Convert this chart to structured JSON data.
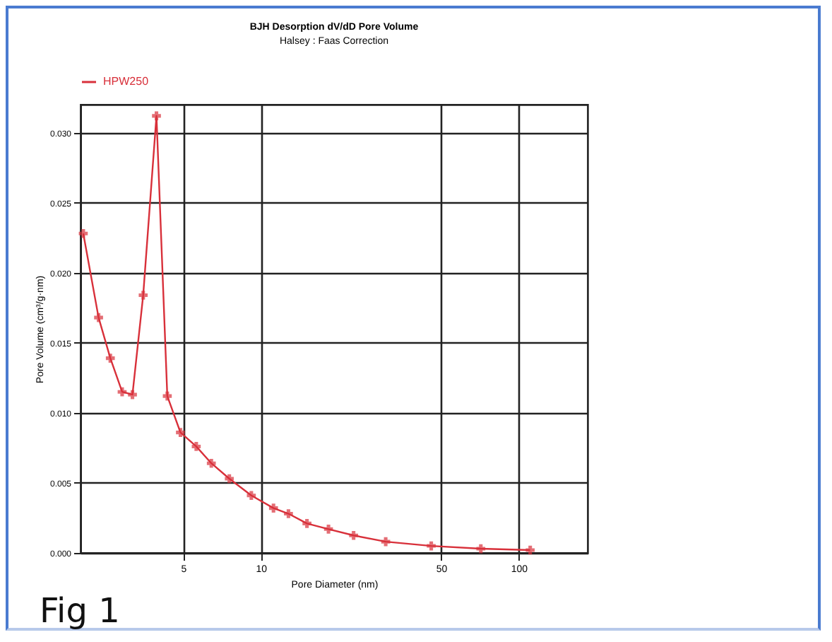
{
  "chart_data": {
    "type": "line",
    "title": "BJH Desorption dV/dD Pore Volume",
    "subtitle": "Halsey : Faas Correction",
    "xlabel": "Pore Diameter (nm)",
    "ylabel": "Pore Volume (cm³/g·nm)",
    "annotations": [
      "Fig 1"
    ],
    "x": [
      2.05,
      2.35,
      2.61,
      2.9,
      3.18,
      3.5,
      3.94,
      4.34,
      4.88,
      5.62,
      6.43,
      7.55,
      9.19,
      11.2,
      12.8,
      15.1,
      18.3,
      22.9,
      30.5,
      45.8,
      71.3,
      110.8
    ],
    "series": [
      {
        "name": "HPW250",
        "color": "#d8303a",
        "values": [
          0.0228,
          0.0168,
          0.0139,
          0.0115,
          0.0113,
          0.0184,
          0.0312,
          0.0112,
          0.0086,
          0.0076,
          0.0064,
          0.0053,
          0.0041,
          0.0032,
          0.0028,
          0.0021,
          0.0017,
          0.00125,
          0.0008,
          0.0005,
          0.0003,
          0.0002
        ]
      }
    ],
    "log": "x",
    "xlim": [
      2,
      185
    ],
    "xticks": [
      5,
      10,
      50,
      100
    ],
    "ylim": [
      0,
      0.032
    ],
    "yticks": [
      {
        "value": 0,
        "label": "0.000"
      },
      {
        "value": 0.005,
        "label": "0.005"
      },
      {
        "value": 0.01,
        "label": "0.010"
      },
      {
        "value": 0.015,
        "label": "0.015"
      },
      {
        "value": 0.02,
        "label": "0.020"
      },
      {
        "value": 0.025,
        "label": "0.025"
      },
      {
        "value": 0.03,
        "label": "0.030"
      }
    ],
    "grid": true,
    "legend": "top left",
    "marker": "cross",
    "line_style": "solid"
  }
}
